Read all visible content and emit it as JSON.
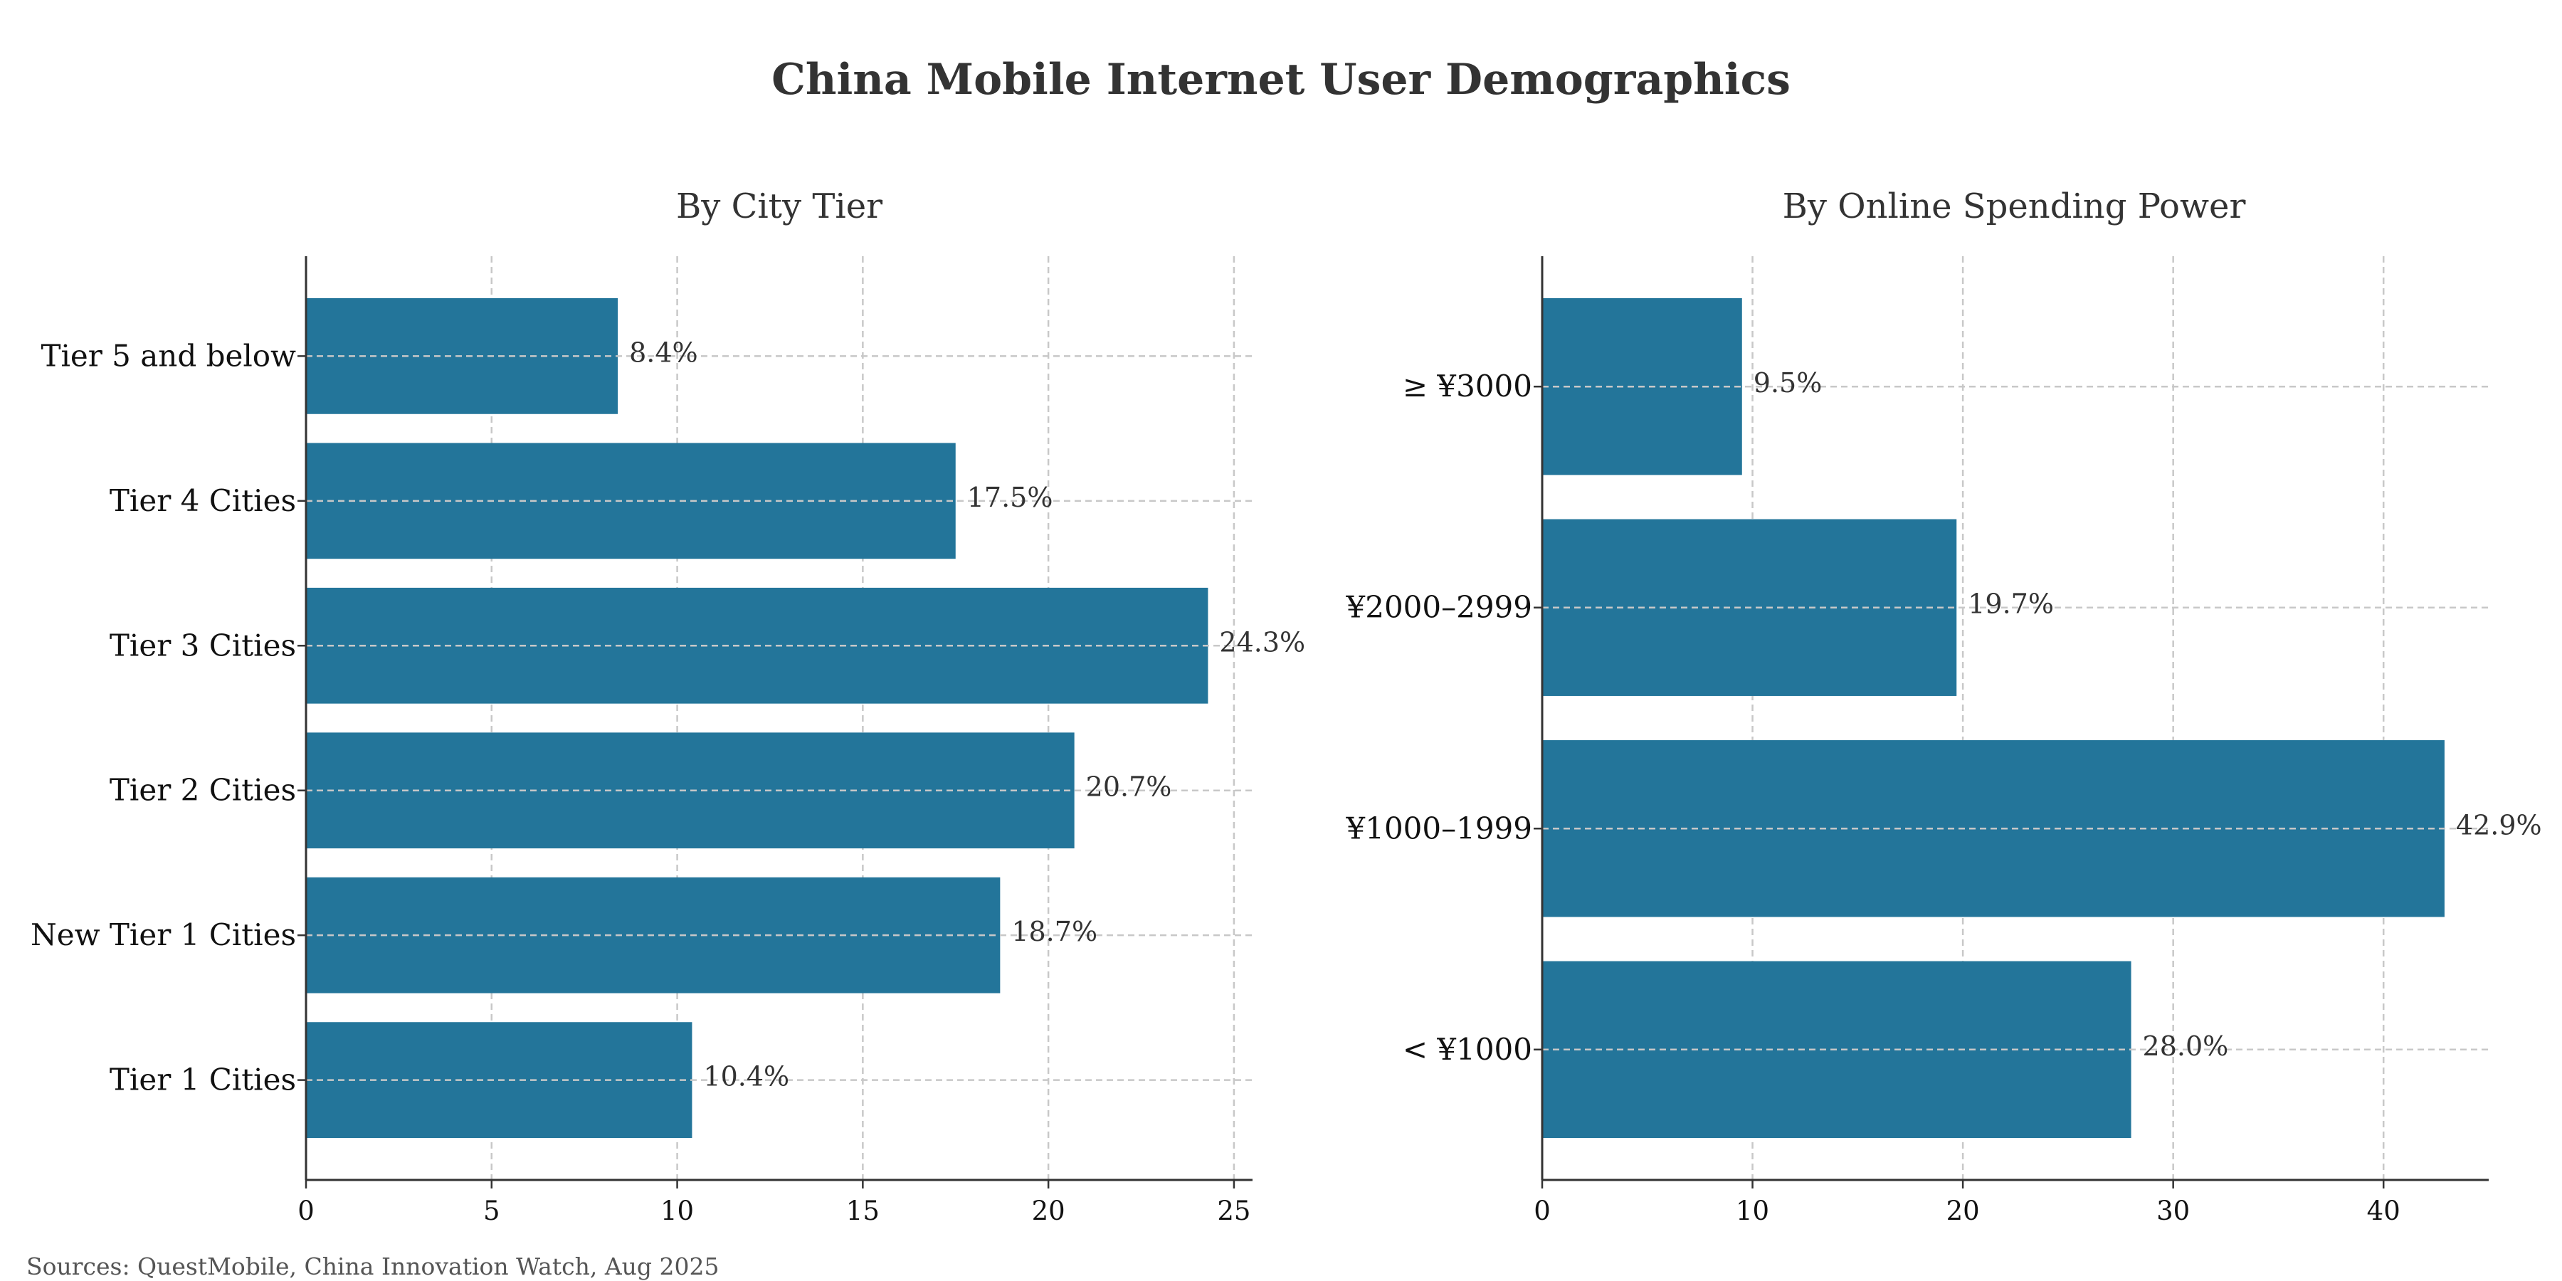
{
  "title": "China Mobile Internet User Demographics",
  "source": "Sources: QuestMobile, China Innovation Watch, Aug 2025",
  "colors": {
    "bar": "#23759a",
    "grid": "#c8c8c8",
    "axis": "#333333",
    "text": "#333333"
  },
  "chart_data": [
    {
      "type": "bar",
      "orientation": "horizontal",
      "title": "By City Tier",
      "categories": [
        "Tier 1 Cities",
        "New Tier 1 Cities",
        "Tier 2 Cities",
        "Tier 3 Cities",
        "Tier 4 Cities",
        "Tier 5 and below"
      ],
      "values": [
        10.4,
        18.7,
        20.7,
        24.3,
        17.5,
        8.4
      ],
      "value_labels": [
        "10.4%",
        "18.7%",
        "20.7%",
        "24.3%",
        "17.5%",
        "8.4%"
      ],
      "xlim": [
        0,
        25.5
      ],
      "xticks": [
        0,
        5,
        10,
        15,
        20,
        25
      ],
      "xlabel": "",
      "ylabel": "",
      "grid": true
    },
    {
      "type": "bar",
      "orientation": "horizontal",
      "title": "By Online Spending Power",
      "categories": [
        "< ¥1000",
        "¥1000–1999",
        "¥2000–2999",
        "≥ ¥3000"
      ],
      "values": [
        28.0,
        42.9,
        19.7,
        9.5
      ],
      "value_labels": [
        "28.0%",
        "42.9%",
        "19.7%",
        "9.5%"
      ],
      "xlim": [
        0,
        45
      ],
      "xticks": [
        0,
        10,
        20,
        30,
        40
      ],
      "xlabel": "",
      "ylabel": "",
      "grid": true
    }
  ]
}
